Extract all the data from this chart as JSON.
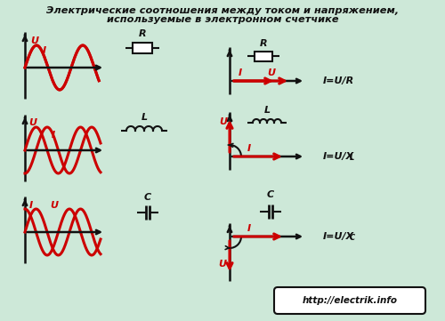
{
  "title_line1": "Электрические соотношения между током и напряжением,",
  "title_line2": "используемые в электронном счетчике",
  "bg_color": "#cde8d8",
  "red_color": "#cc0000",
  "black_color": "#111111",
  "url_text": "http://electrik.info",
  "eq_R": "I=U/R",
  "eq_L": "I=U/XL",
  "eq_C": "I=U/XC",
  "label_R": "R",
  "label_L": "L",
  "label_C": "C"
}
